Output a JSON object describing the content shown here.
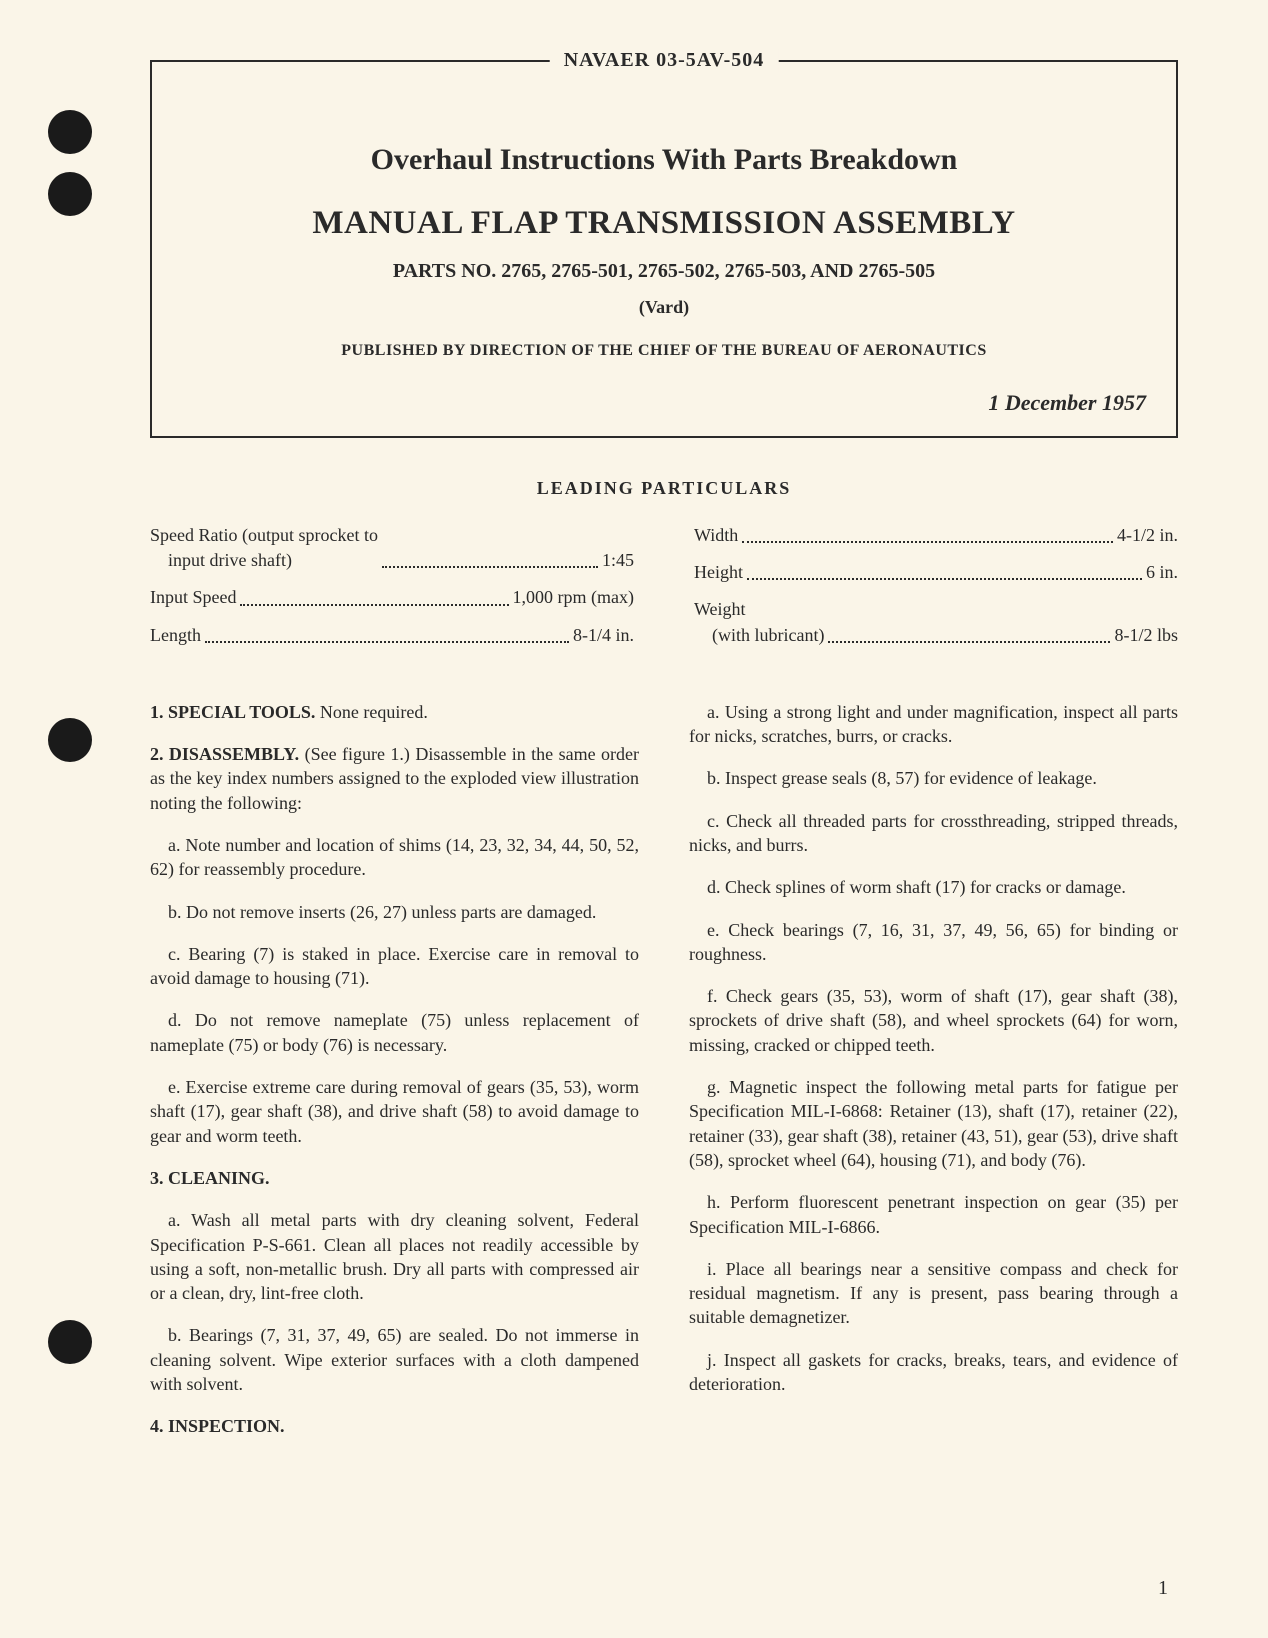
{
  "header": {
    "doc_number": "NAVAER 03-5AV-504",
    "title": "Overhaul Instructions With Parts Breakdown",
    "assembly_title": "MANUAL FLAP TRANSMISSION ASSEMBLY",
    "parts_line": "PARTS NO. 2765, 2765-501, 2765-502, 2765-503, AND 2765-505",
    "vard": "(Vard)",
    "publisher": "PUBLISHED BY DIRECTION OF THE CHIEF OF THE BUREAU OF AERONAUTICS",
    "date": "1 December 1957"
  },
  "leading_particulars": {
    "heading": "LEADING PARTICULARS",
    "left": [
      {
        "label": "Speed Ratio (output sprocket to\n    input drive shaft)",
        "value": "1:45"
      },
      {
        "label": "Input Speed",
        "value": "1,000 rpm (max)"
      },
      {
        "label": "Length",
        "value": "8-1/4 in."
      }
    ],
    "right": [
      {
        "label": "Width",
        "value": "4-1/2 in."
      },
      {
        "label": "Height",
        "value": "6 in."
      },
      {
        "label": "Weight\n    (with lubricant)",
        "value": "8-1/2 lbs"
      }
    ]
  },
  "body": {
    "left": [
      {
        "type": "para",
        "head": "1. SPECIAL TOOLS.",
        "text": " None required."
      },
      {
        "type": "para",
        "head": "2. DISASSEMBLY.",
        "text": " (See figure 1.) Disassemble in the same order as the key index numbers assigned to the exploded view illustration noting the following:"
      },
      {
        "type": "sub",
        "text": "a. Note number and location of shims (14, 23, 32, 34, 44, 50, 52, 62) for reassembly procedure."
      },
      {
        "type": "sub",
        "text": "b. Do not remove inserts (26, 27) unless parts are damaged."
      },
      {
        "type": "sub",
        "text": "c. Bearing (7) is staked in place. Exercise care in removal to avoid damage to housing (71)."
      },
      {
        "type": "sub",
        "text": "d. Do not remove nameplate (75) unless replacement of nameplate (75) or body (76) is necessary."
      },
      {
        "type": "sub",
        "text": "e. Exercise extreme care during removal of gears (35, 53), worm shaft (17), gear shaft (38), and drive shaft (58) to avoid damage to gear and worm teeth."
      },
      {
        "type": "para",
        "head": "3. CLEANING.",
        "text": ""
      },
      {
        "type": "sub",
        "text": "a. Wash all metal parts with dry cleaning solvent, Federal Specification P-S-661. Clean all places not readily accessible by using a soft, non-metallic brush. Dry all parts with compressed air or a clean, dry, lint-free cloth."
      },
      {
        "type": "sub",
        "text": "b. Bearings (7, 31, 37, 49, 65) are sealed. Do not immerse in cleaning solvent. Wipe exterior surfaces with a cloth dampened with solvent."
      },
      {
        "type": "para",
        "head": "4. INSPECTION.",
        "text": ""
      }
    ],
    "right": [
      {
        "type": "sub",
        "text": "a. Using a strong light and under magnification, inspect all parts for nicks, scratches, burrs, or cracks."
      },
      {
        "type": "sub",
        "text": "b. Inspect grease seals (8, 57) for evidence of leakage."
      },
      {
        "type": "sub",
        "text": "c. Check all threaded parts for crossthreading, stripped threads, nicks, and burrs."
      },
      {
        "type": "sub",
        "text": "d. Check splines of worm shaft (17) for cracks or damage."
      },
      {
        "type": "sub",
        "text": "e. Check bearings (7, 16, 31, 37, 49, 56, 65) for binding or roughness."
      },
      {
        "type": "sub",
        "text": "f. Check gears (35, 53), worm of shaft (17), gear shaft (38), sprockets of drive shaft (58), and wheel sprockets (64) for worn, missing, cracked or chipped teeth."
      },
      {
        "type": "sub",
        "text": "g. Magnetic inspect the following metal parts for fatigue per Specification MIL-I-6868: Retainer (13), shaft (17), retainer (22), retainer (33), gear shaft (38), retainer (43, 51), gear (53), drive shaft (58), sprocket wheel (64), housing (71), and body (76)."
      },
      {
        "type": "sub",
        "text": "h. Perform fluorescent penetrant inspection on gear (35) per Specification MIL-I-6866."
      },
      {
        "type": "sub",
        "text": "i. Place all bearings near a sensitive compass and check for residual magnetism. If any is present, pass bearing through a suitable demagnetizer."
      },
      {
        "type": "sub",
        "text": "j. Inspect all gaskets for cracks, breaks, tears, and evidence of deterioration."
      }
    ]
  },
  "page_number": "1"
}
